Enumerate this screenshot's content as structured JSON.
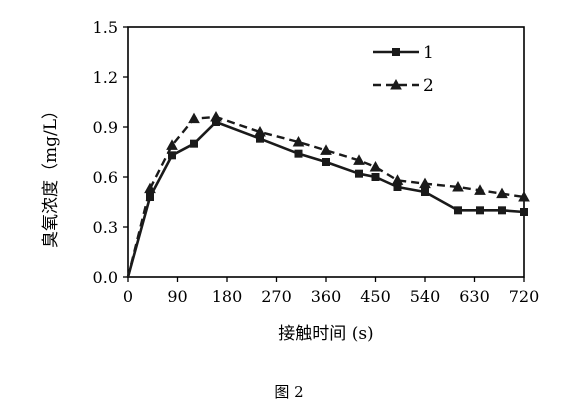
{
  "caption": "图 2",
  "chart_data": {
    "type": "line",
    "xlabel": "接触时间 (s)",
    "ylabel": "臭氧浓度（mg/L）",
    "x_ticks": [
      0,
      90,
      180,
      270,
      360,
      450,
      540,
      630,
      720
    ],
    "y_ticks": [
      0.0,
      0.3,
      0.6,
      0.9,
      1.2,
      1.5
    ],
    "x_tick_labels": [
      "0",
      "90",
      "180",
      "270",
      "360",
      "450",
      "540",
      "630",
      "720"
    ],
    "y_tick_labels": [
      "0.0",
      "0.3",
      "0.6",
      "0.9",
      "1.2",
      "1.5"
    ],
    "xlim": [
      0,
      720
    ],
    "ylim": [
      0,
      1.5
    ],
    "grid": false,
    "legend_position": "top-right",
    "series": [
      {
        "name": "1",
        "line_style": "solid",
        "marker": "square",
        "x": [
          0,
          40,
          80,
          120,
          160,
          240,
          310,
          360,
          420,
          450,
          490,
          540,
          600,
          640,
          680,
          720
        ],
        "y": [
          0.0,
          0.48,
          0.73,
          0.8,
          0.93,
          0.83,
          0.74,
          0.69,
          0.62,
          0.6,
          0.54,
          0.51,
          0.4,
          0.4,
          0.4,
          0.39
        ]
      },
      {
        "name": "2",
        "line_style": "dashed",
        "marker": "triangle",
        "x": [
          0,
          40,
          80,
          120,
          160,
          240,
          310,
          360,
          420,
          450,
          490,
          540,
          600,
          640,
          680,
          720
        ],
        "y": [
          0.0,
          0.53,
          0.79,
          0.95,
          0.96,
          0.87,
          0.81,
          0.76,
          0.7,
          0.66,
          0.58,
          0.56,
          0.54,
          0.52,
          0.5,
          0.48
        ]
      }
    ]
  }
}
